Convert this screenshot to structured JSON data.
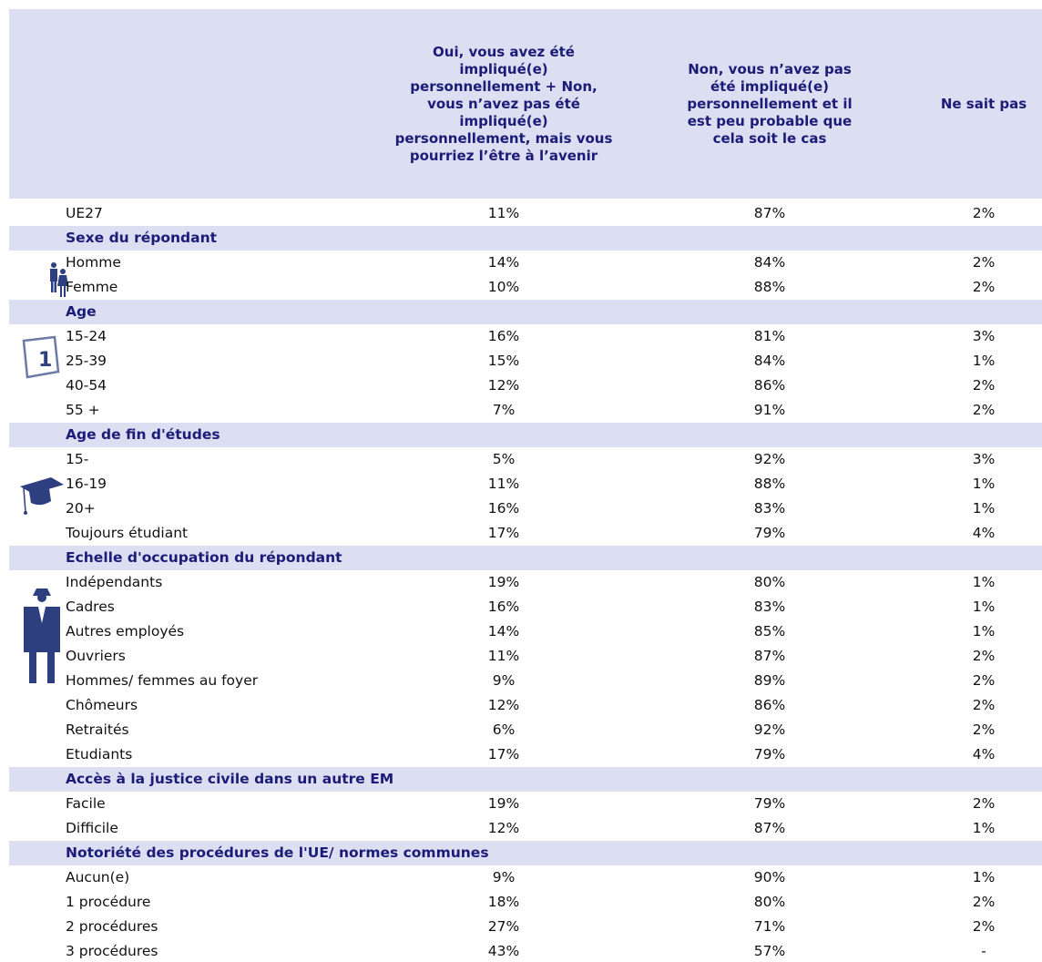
{
  "header": {
    "columns": [
      "Oui, vous avez été\nimpliqué(e)\npersonnellement + Non,\nvous n’avez pas été\nimpliqué(e)\npersonnellement, mais vous\npourriez l’être à l’avenir",
      "Non, vous n’avez pas\nété impliqué(e)\npersonnellement et il\nest peu probable que\ncela soit le cas",
      "Ne sait pas"
    ]
  },
  "total": {
    "label": "UE27",
    "values": [
      "11%",
      "87%",
      "2%"
    ]
  },
  "sections": [
    {
      "title": "Sexe du répondant",
      "rows": [
        {
          "label": "Homme",
          "values": [
            "14%",
            "84%",
            "2%"
          ]
        },
        {
          "label": "Femme",
          "values": [
            "10%",
            "88%",
            "2%"
          ]
        }
      ]
    },
    {
      "title": "Age",
      "rows": [
        {
          "label": "15-24",
          "values": [
            "16%",
            "81%",
            "3%"
          ]
        },
        {
          "label": "25-39",
          "values": [
            "15%",
            "84%",
            "1%"
          ]
        },
        {
          "label": "40-54",
          "values": [
            "12%",
            "86%",
            "2%"
          ]
        },
        {
          "label": "55 +",
          "values": [
            "7%",
            "91%",
            "2%"
          ]
        }
      ]
    },
    {
      "title": "Age de fin d'études",
      "rows": [
        {
          "label": "15-",
          "values": [
            "5%",
            "92%",
            "3%"
          ]
        },
        {
          "label": "16-19",
          "values": [
            "11%",
            "88%",
            "1%"
          ]
        },
        {
          "label": "20+",
          "values": [
            "16%",
            "83%",
            "1%"
          ]
        },
        {
          "label": "Toujours étudiant",
          "values": [
            "17%",
            "79%",
            "4%"
          ]
        }
      ]
    },
    {
      "title": "Echelle d'occupation du répondant",
      "rows": [
        {
          "label": "Indépendants",
          "values": [
            "19%",
            "80%",
            "1%"
          ]
        },
        {
          "label": "Cadres",
          "values": [
            "16%",
            "83%",
            "1%"
          ]
        },
        {
          "label": "Autres employés",
          "values": [
            "14%",
            "85%",
            "1%"
          ]
        },
        {
          "label": "Ouvriers",
          "values": [
            "11%",
            "87%",
            "2%"
          ]
        },
        {
          "label": "Hommes/ femmes au foyer",
          "values": [
            "9%",
            "89%",
            "2%"
          ]
        },
        {
          "label": "Chômeurs",
          "values": [
            "12%",
            "86%",
            "2%"
          ]
        },
        {
          "label": "Retraités",
          "values": [
            "6%",
            "92%",
            "2%"
          ]
        },
        {
          "label": "Etudiants",
          "values": [
            "17%",
            "79%",
            "4%"
          ]
        }
      ]
    },
    {
      "title": "Accès à la justice civile dans un autre EM",
      "rows": [
        {
          "label": "Facile",
          "values": [
            "19%",
            "79%",
            "2%"
          ]
        },
        {
          "label": "Difficile",
          "values": [
            "12%",
            "87%",
            "1%"
          ]
        }
      ]
    },
    {
      "title": "Notoriété des procédures de l'UE/ normes communes",
      "rows": [
        {
          "label": "Aucun(e)",
          "values": [
            "9%",
            "90%",
            "1%"
          ]
        },
        {
          "label": "1 procédure",
          "values": [
            "18%",
            "80%",
            "2%"
          ]
        },
        {
          "label": "2 procédures",
          "values": [
            "27%",
            "71%",
            "2%"
          ]
        },
        {
          "label": "3 procédures",
          "values": [
            "43%",
            "57%",
            "-"
          ]
        }
      ]
    }
  ]
}
